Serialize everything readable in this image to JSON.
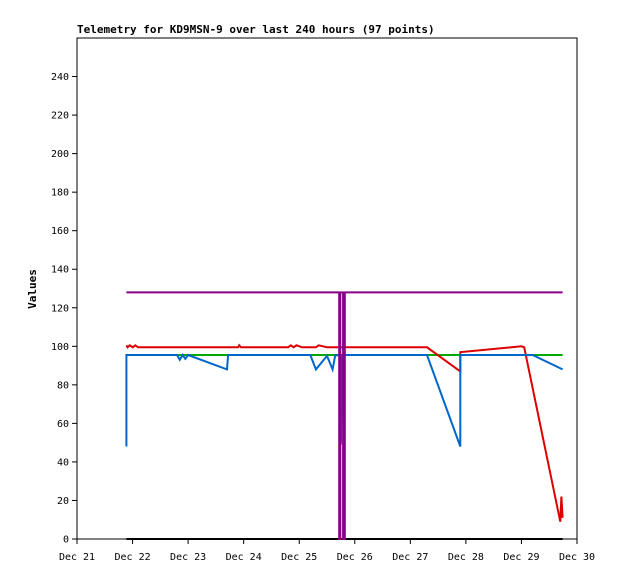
{
  "chart_data": {
    "type": "line",
    "title": "Telemetry for KD9MSN-9 over last 240 hours (97 points)",
    "xlabel": "",
    "ylabel": "Values",
    "ylim": [
      0,
      260
    ],
    "xlim": [
      0,
      9
    ],
    "y_ticks": [
      0,
      20,
      40,
      60,
      80,
      100,
      120,
      140,
      160,
      180,
      200,
      220,
      240
    ],
    "x_ticks": [
      {
        "x": 0,
        "label": "Dec 21"
      },
      {
        "x": 1,
        "label": "Dec 22"
      },
      {
        "x": 2,
        "label": "Dec 23"
      },
      {
        "x": 3,
        "label": "Dec 24"
      },
      {
        "x": 4,
        "label": "Dec 25"
      },
      {
        "x": 5,
        "label": "Dec 26"
      },
      {
        "x": 6,
        "label": "Dec 27"
      },
      {
        "x": 7,
        "label": "Dec 28"
      },
      {
        "x": 8,
        "label": "Dec 29"
      },
      {
        "x": 9,
        "label": "Dec 30"
      }
    ],
    "grid": false,
    "legend": "none",
    "series": [
      {
        "color": "#00aa00",
        "points": [
          [
            0.89,
            95.5
          ],
          [
            8.74,
            95.5
          ]
        ]
      },
      {
        "color": "#000000",
        "points": [
          [
            0.89,
            0
          ],
          [
            8.74,
            0
          ]
        ]
      },
      {
        "color": "#dd0000",
        "points": [
          [
            0.89,
            100.5
          ],
          [
            0.91,
            99.5
          ],
          [
            0.95,
            100.5
          ],
          [
            1.0,
            99.5
          ],
          [
            1.05,
            100.5
          ],
          [
            1.1,
            99.5
          ],
          [
            2.9,
            99.5
          ],
          [
            2.92,
            100.5
          ],
          [
            2.95,
            99.5
          ],
          [
            3.8,
            99.5
          ],
          [
            3.85,
            100.5
          ],
          [
            3.9,
            99.5
          ],
          [
            3.95,
            100.5
          ],
          [
            4.05,
            99.5
          ],
          [
            4.3,
            99.5
          ],
          [
            4.35,
            100.5
          ],
          [
            4.5,
            99.5
          ],
          [
            5.0,
            99.5
          ],
          [
            6.3,
            99.5
          ],
          [
            6.9,
            87
          ],
          [
            6.9,
            97
          ],
          [
            8.0,
            100
          ],
          [
            8.05,
            99.5
          ],
          [
            8.7,
            9
          ],
          [
            8.72,
            22
          ],
          [
            8.74,
            11
          ]
        ]
      },
      {
        "color": "#0066cc",
        "points": [
          [
            0.89,
            48
          ],
          [
            0.89,
            95.5
          ],
          [
            1.8,
            95.5
          ],
          [
            1.85,
            93
          ],
          [
            1.9,
            95.5
          ],
          [
            1.95,
            93.5
          ],
          [
            2.0,
            95.5
          ],
          [
            2.7,
            88
          ],
          [
            2.72,
            95.5
          ],
          [
            4.2,
            95.5
          ],
          [
            4.3,
            88
          ],
          [
            4.5,
            95
          ],
          [
            4.6,
            88
          ],
          [
            4.65,
            95.5
          ],
          [
            4.75,
            95
          ],
          [
            4.75,
            49
          ],
          [
            4.78,
            95.5
          ],
          [
            6.3,
            95.5
          ],
          [
            6.9,
            48
          ],
          [
            6.9,
            95.5
          ],
          [
            8.2,
            95.5
          ],
          [
            8.74,
            88
          ]
        ]
      },
      {
        "color": "#880088",
        "points": [
          [
            0.89,
            128
          ],
          [
            4.72,
            128
          ],
          [
            4.72,
            0
          ],
          [
            4.74,
            0
          ],
          [
            4.74,
            128
          ],
          [
            4.79,
            128
          ],
          [
            4.79,
            0
          ],
          [
            4.82,
            0
          ],
          [
            4.82,
            128
          ],
          [
            8.74,
            128
          ]
        ]
      }
    ]
  }
}
